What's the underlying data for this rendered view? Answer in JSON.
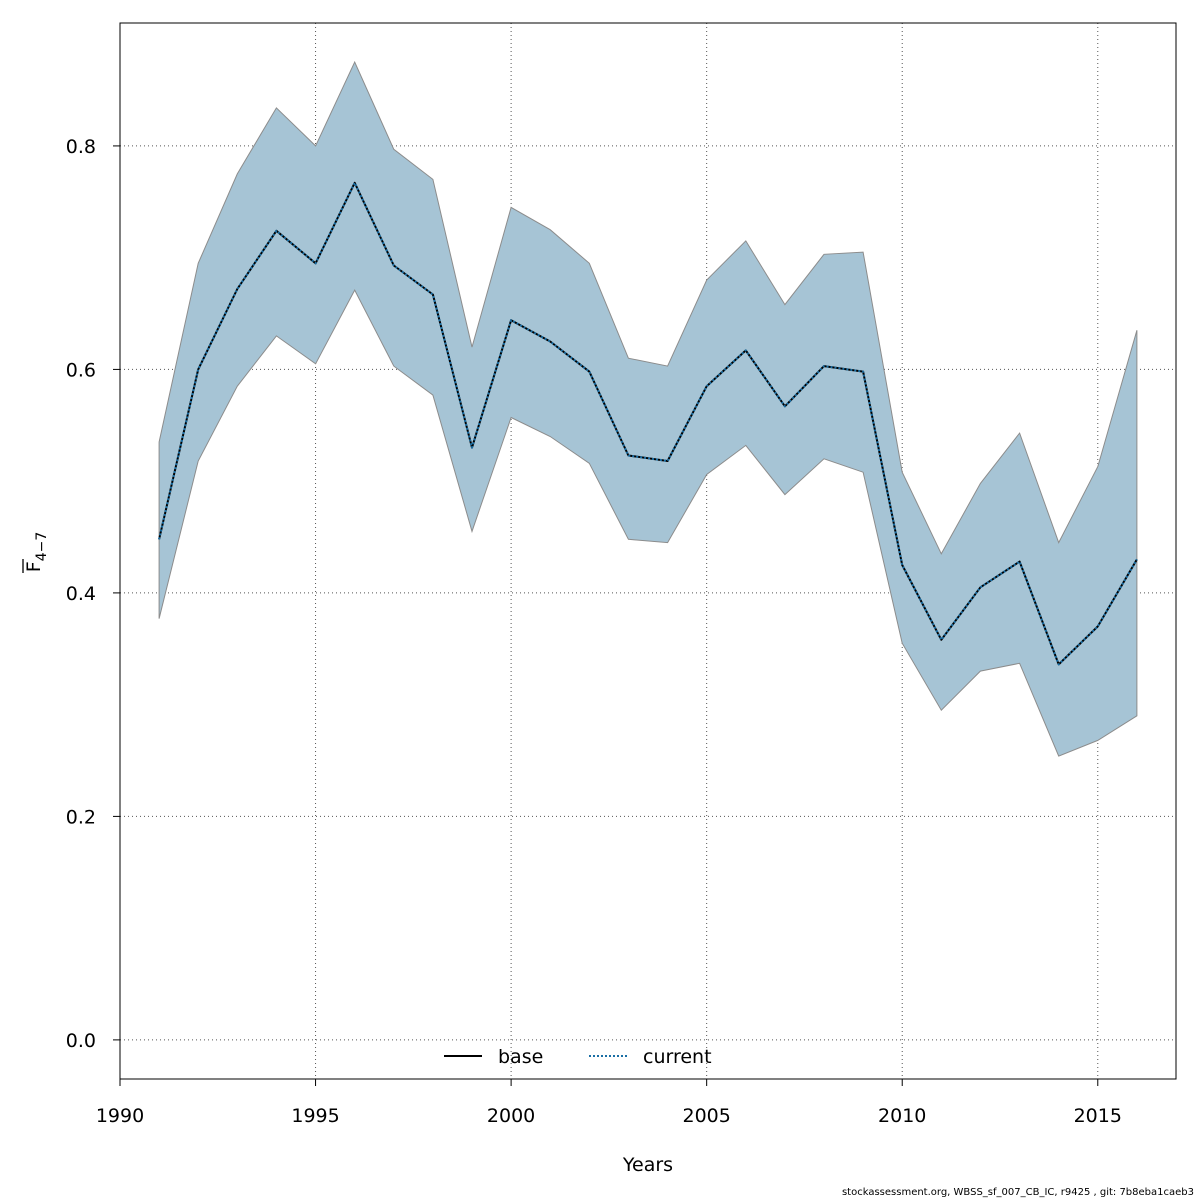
{
  "chart_data": {
    "type": "line",
    "xlabel": "Years",
    "ylabel_main": "F",
    "ylabel_sub": "4−7",
    "xlim": [
      1990,
      2017
    ],
    "ylim": [
      -0.035,
      0.91
    ],
    "xticks": [
      1990,
      1995,
      2000,
      2005,
      2010,
      2015
    ],
    "yticks": [
      0.0,
      0.2,
      0.4,
      0.6,
      0.8
    ],
    "xtick_labels": [
      "1990",
      "1995",
      "2000",
      "2005",
      "2010",
      "2015"
    ],
    "ytick_labels": [
      "0.0",
      "0.2",
      "0.4",
      "0.6",
      "0.8"
    ],
    "grid": true,
    "legend_position": "bottom-center",
    "x": [
      1991,
      1992,
      1993,
      1994,
      1995,
      1996,
      1997,
      1998,
      1999,
      2000,
      2001,
      2002,
      2003,
      2004,
      2005,
      2006,
      2007,
      2008,
      2009,
      2010,
      2011,
      2012,
      2013,
      2014,
      2015,
      2016
    ],
    "band": {
      "upper": [
        0.535,
        0.695,
        0.775,
        0.834,
        0.8,
        0.875,
        0.797,
        0.77,
        0.62,
        0.745,
        0.725,
        0.695,
        0.61,
        0.603,
        0.68,
        0.715,
        0.658,
        0.703,
        0.705,
        0.508,
        0.435,
        0.498,
        0.543,
        0.445,
        0.513,
        0.635
      ],
      "lower": [
        0.377,
        0.518,
        0.585,
        0.63,
        0.605,
        0.671,
        0.603,
        0.577,
        0.455,
        0.557,
        0.54,
        0.516,
        0.448,
        0.445,
        0.506,
        0.532,
        0.488,
        0.52,
        0.508,
        0.355,
        0.295,
        0.33,
        0.337,
        0.254,
        0.268,
        0.29
      ],
      "fill_color": "#a6c4d5",
      "edge_color": "#8c8c8c"
    },
    "series": [
      {
        "name": "base",
        "style": "solid",
        "color": "#000000",
        "values": [
          0.448,
          0.6,
          0.672,
          0.724,
          0.695,
          0.767,
          0.693,
          0.667,
          0.53,
          0.644,
          0.625,
          0.598,
          0.523,
          0.518,
          0.585,
          0.617,
          0.567,
          0.603,
          0.598,
          0.425,
          0.358,
          0.405,
          0.428,
          0.336,
          0.37,
          0.43
        ]
      },
      {
        "name": "current",
        "style": "dotted",
        "color": "#1a6fa5",
        "values": [
          0.448,
          0.6,
          0.672,
          0.724,
          0.695,
          0.767,
          0.693,
          0.667,
          0.53,
          0.644,
          0.625,
          0.598,
          0.523,
          0.518,
          0.585,
          0.617,
          0.567,
          0.603,
          0.598,
          0.425,
          0.358,
          0.405,
          0.428,
          0.336,
          0.37,
          0.43
        ]
      }
    ]
  },
  "footer": "stockassessment.org, WBSS_sf_007_CB_IC, r9425 , git: 7b8eba1caeb3"
}
